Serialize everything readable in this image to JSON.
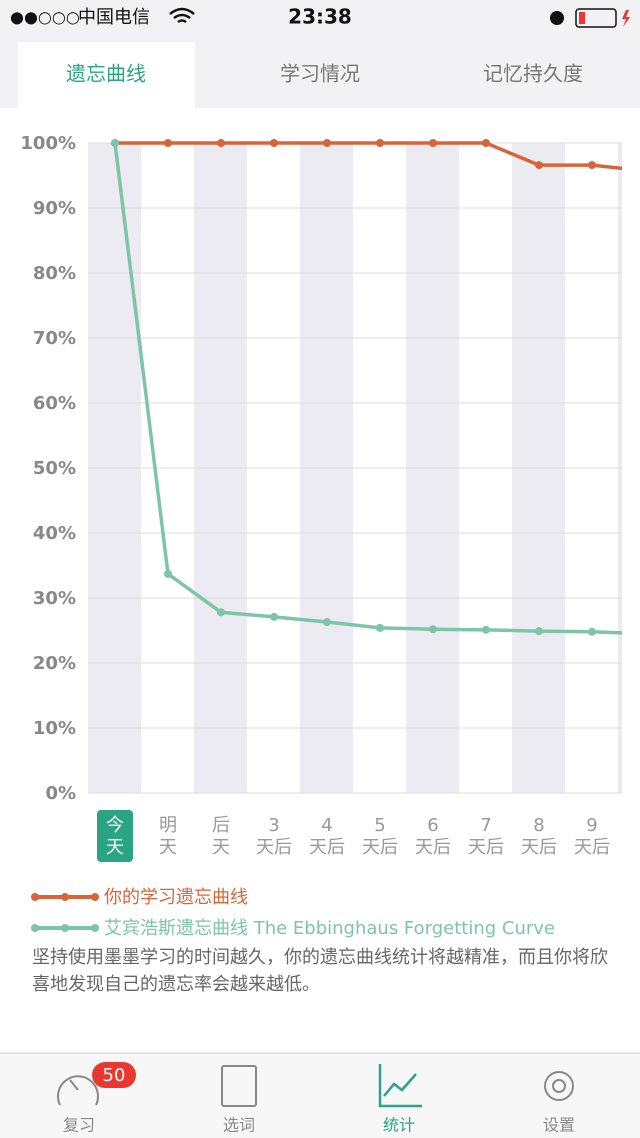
{
  "status_bar": {
    "signal": "●●○○○",
    "carrier": "中国电信",
    "time": "23:38"
  },
  "tabs": [
    "遗忘曲线",
    "学习情况",
    "记忆持久度"
  ],
  "chart_data": {
    "type": "line",
    "categories": [
      [
        "今",
        "天"
      ],
      [
        "明",
        "天"
      ],
      [
        "后",
        "天"
      ],
      [
        "3",
        "天后"
      ],
      [
        "4",
        "天后"
      ],
      [
        "5",
        "天后"
      ],
      [
        "6",
        "天后"
      ],
      [
        "7",
        "天后"
      ],
      [
        "8",
        "天后"
      ],
      [
        "9",
        "天后"
      ],
      null
    ],
    "series": [
      {
        "name": "你的学习遗忘曲线",
        "color": "#d9643a",
        "values": [
          100,
          100,
          100,
          100,
          100,
          100,
          100,
          100,
          96.6,
          96.6,
          95.7
        ]
      },
      {
        "name": "艾宾浩斯遗忘曲线 The Ebbinghaus Forgetting Curve",
        "color": "#7dc5a8",
        "values": [
          100,
          33.7,
          27.8,
          27.1,
          26.3,
          25.4,
          25.2,
          25.1,
          24.9,
          24.8,
          24.5
        ]
      }
    ],
    "ylim": [
      0,
      100
    ],
    "yticks": [
      {
        "value": 0,
        "label": "0%"
      },
      {
        "value": 10,
        "label": "10%"
      },
      {
        "value": 20,
        "label": "20%"
      },
      {
        "value": 30,
        "label": "30%"
      },
      {
        "value": 40,
        "label": "40%"
      },
      {
        "value": 50,
        "label": "50%"
      },
      {
        "value": 60,
        "label": "60%"
      },
      {
        "value": 70,
        "label": "70%"
      },
      {
        "value": 80,
        "label": "80%"
      },
      {
        "value": 90,
        "label": "90%"
      },
      {
        "value": 100,
        "label": "100%"
      }
    ],
    "grid": true
  },
  "description": "坚持使用墨墨学习的时间越久，你的遗忘曲线统计将越精准，而且你将欣喜地发现自己的遗忘率会越来越低。",
  "tab_bar": {
    "items": [
      {
        "label": "复习",
        "badge": 50
      },
      {
        "label": "选词"
      },
      {
        "label": "统计"
      },
      {
        "label": "设置"
      }
    ]
  }
}
